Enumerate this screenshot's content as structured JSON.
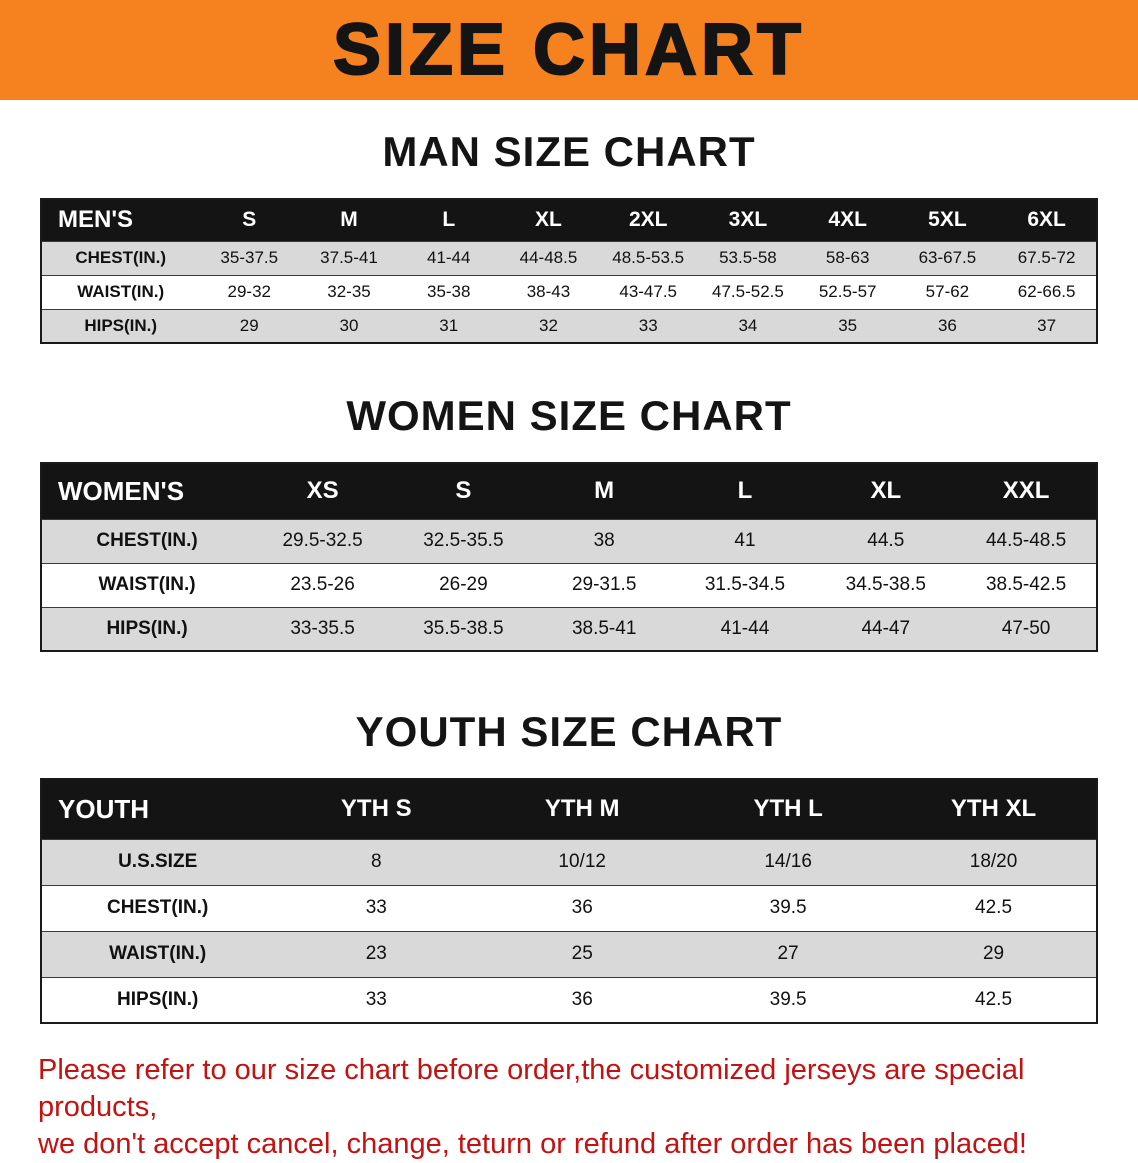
{
  "banner": {
    "title": "SIZE CHART"
  },
  "colors": {
    "banner_orange": "#f6821f",
    "header_black": "#141414",
    "stripe_gray": "#d9d9d9",
    "footer_red": "#c31212"
  },
  "footer": {
    "line1": "Please refer to our size chart before order,the customized jerseys are special products,",
    "line2": "we don't accept cancel, change, teturn or refund after order has been placed!"
  },
  "chart_data": [
    {
      "type": "table",
      "title": "MAN SIZE CHART",
      "columns": [
        "MEN'S",
        "S",
        "M",
        "L",
        "XL",
        "2XL",
        "3XL",
        "4XL",
        "5XL",
        "6XL"
      ],
      "rows": [
        [
          "CHEST(IN.)",
          "35-37.5",
          "37.5-41",
          "41-44",
          "44-48.5",
          "48.5-53.5",
          "53.5-58",
          "58-63",
          "63-67.5",
          "67.5-72"
        ],
        [
          "WAIST(IN.)",
          "29-32",
          "32-35",
          "35-38",
          "38-43",
          "43-47.5",
          "47.5-52.5",
          "52.5-57",
          "57-62",
          "62-66.5"
        ],
        [
          "HIPS(IN.)",
          "29",
          "30",
          "31",
          "32",
          "33",
          "34",
          "35",
          "36",
          "37"
        ]
      ]
    },
    {
      "type": "table",
      "title": "WOMEN SIZE CHART",
      "columns": [
        "WOMEN'S",
        "XS",
        "S",
        "M",
        "L",
        "XL",
        "XXL"
      ],
      "rows": [
        [
          "CHEST(IN.)",
          "29.5-32.5",
          "32.5-35.5",
          "38",
          "41",
          "44.5",
          "44.5-48.5"
        ],
        [
          "WAIST(IN.)",
          "23.5-26",
          "26-29",
          "29-31.5",
          "31.5-34.5",
          "34.5-38.5",
          "38.5-42.5"
        ],
        [
          "HIPS(IN.)",
          "33-35.5",
          "35.5-38.5",
          "38.5-41",
          "41-44",
          "44-47",
          "47-50"
        ]
      ]
    },
    {
      "type": "table",
      "title": "YOUTH SIZE CHART",
      "columns": [
        "YOUTH",
        "YTH S",
        "YTH M",
        "YTH L",
        "YTH XL"
      ],
      "rows": [
        [
          "U.S.SIZE",
          "8",
          "10/12",
          "14/16",
          "18/20"
        ],
        [
          "CHEST(IN.)",
          "33",
          "36",
          "39.5",
          "42.5"
        ],
        [
          "WAIST(IN.)",
          "23",
          "25",
          "27",
          "29"
        ],
        [
          "HIPS(IN.)",
          "33",
          "36",
          "39.5",
          "42.5"
        ]
      ]
    }
  ]
}
